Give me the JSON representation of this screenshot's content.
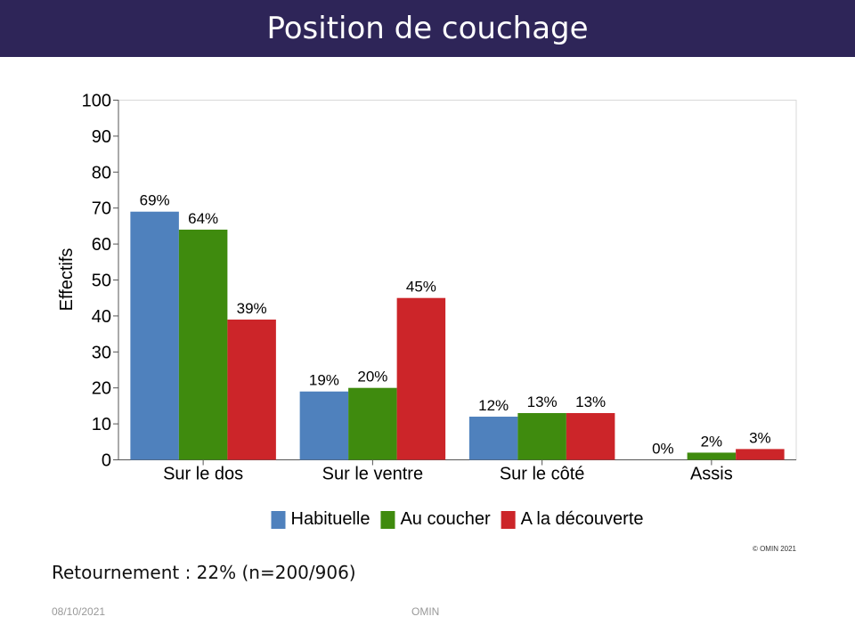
{
  "slide": {
    "title": "Position de couchage",
    "footnote": "Retournement : 22% (n=200/906)",
    "date": "08/10/2021",
    "footer": "OMIN",
    "copyright": "© OMIN 2021"
  },
  "chart_data": {
    "type": "bar",
    "title": "",
    "xlabel": "",
    "ylabel": "Effectifs",
    "ylim": [
      0,
      100
    ],
    "yticks": [
      0,
      10,
      20,
      30,
      40,
      50,
      60,
      70,
      80,
      90,
      100
    ],
    "grid": false,
    "legend_position": "bottom",
    "categories": [
      "Sur le dos",
      "Sur le ventre",
      "Sur le côté",
      "Assis"
    ],
    "series": [
      {
        "name": "Habituelle",
        "color": "#4f81bd",
        "values": [
          69,
          19,
          12,
          0
        ],
        "labels": [
          "69%",
          "19%",
          "12%",
          "0%"
        ]
      },
      {
        "name": "Au coucher",
        "color": "#3f8b0e",
        "values": [
          64,
          20,
          13,
          2
        ],
        "labels": [
          "64%",
          "20%",
          "13%",
          "2%"
        ]
      },
      {
        "name": "A la découverte",
        "color": "#cc2529",
        "values": [
          39,
          45,
          13,
          3
        ],
        "labels": [
          "39%",
          "45%",
          "13%",
          "3%"
        ]
      }
    ]
  }
}
